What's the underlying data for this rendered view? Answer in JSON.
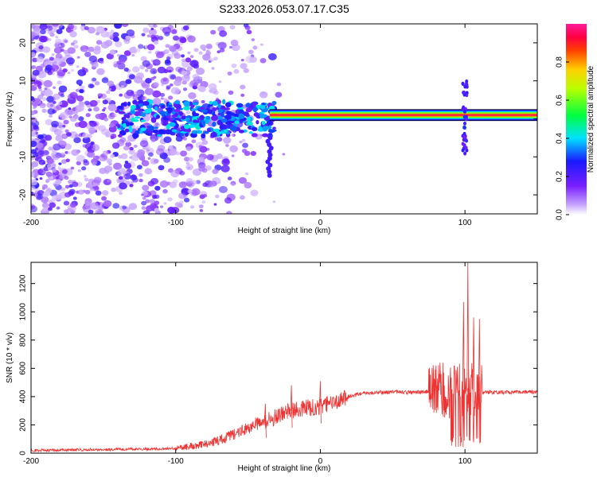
{
  "figure": {
    "title": "S233.2026.053.07.17.C35"
  },
  "chart_data": [
    {
      "type": "heatmap",
      "title": "S233.2026.053.07.17.C35",
      "xlabel": "Height of straight line (km)",
      "ylabel": "Frequency (Hz)",
      "xlim": [
        -200,
        150
      ],
      "ylim": [
        -25,
        25
      ],
      "xticks": [
        -200,
        -100,
        0,
        100
      ],
      "yticks": [
        -20,
        -10,
        0,
        10,
        20
      ],
      "xtick_labels": [
        "-200",
        "-100",
        "0",
        "100"
      ],
      "ytick_labels": [
        "-20",
        "-10",
        "0",
        "10",
        "20"
      ],
      "colorbar": {
        "label": "Normalized spectral amplitude",
        "range": [
          0,
          1
        ],
        "ticks": [
          0,
          0.2,
          0.4,
          0.6,
          0.8
        ],
        "tick_labels": [
          "0.0",
          "0.2",
          "0.4",
          "0.6",
          "0.8"
        ],
        "colormap": "rainbow (purple-blue-cyan-green-yellow-red-magenta)"
      },
      "features": {
        "carrier_line": {
          "x_range": [
            -35,
            150
          ],
          "frequency": 1,
          "amplitude": 0.95
        },
        "noisy_region": {
          "x_range": [
            -200,
            -30
          ],
          "frequency_spread": 25
        },
        "spike_near": {
          "x": 100,
          "frequency_range": [
            -10,
            10
          ]
        }
      }
    },
    {
      "type": "line",
      "title": "",
      "xlabel": "Height of straight line (km)",
      "ylabel": "SNR (10 * v/v)",
      "xlim": [
        -200,
        150
      ],
      "ylim": [
        0,
        1350
      ],
      "xticks": [
        -200,
        -100,
        0,
        100
      ],
      "yticks": [
        0,
        200,
        400,
        600,
        800,
        1000,
        1200
      ],
      "xtick_labels": [
        "-200",
        "-100",
        "0",
        "100"
      ],
      "ytick_labels": [
        "0",
        "200",
        "400",
        "600",
        "800",
        "1000",
        "1200"
      ],
      "color": "#ee3333",
      "profile": [
        [
          -200,
          20
        ],
        [
          -150,
          25
        ],
        [
          -110,
          30
        ],
        [
          -95,
          40
        ],
        [
          -80,
          60
        ],
        [
          -70,
          90
        ],
        [
          -60,
          130
        ],
        [
          -50,
          180
        ],
        [
          -40,
          220
        ],
        [
          -30,
          260
        ],
        [
          -20,
          300
        ],
        [
          -10,
          320
        ],
        [
          0,
          330
        ],
        [
          10,
          360
        ],
        [
          20,
          400
        ],
        [
          30,
          425
        ],
        [
          40,
          430
        ],
        [
          50,
          435
        ],
        [
          60,
          430
        ],
        [
          70,
          432
        ],
        [
          80,
          440
        ],
        [
          90,
          445
        ],
        [
          98,
          440
        ],
        [
          104,
          440
        ],
        [
          110,
          430
        ],
        [
          120,
          430
        ],
        [
          130,
          430
        ],
        [
          140,
          432
        ],
        [
          150,
          430
        ]
      ],
      "peaks": [
        {
          "x": 102,
          "y": 1350
        },
        {
          "x": 99,
          "y": 1070
        },
        {
          "x": 106,
          "y": 960
        },
        {
          "x": 110,
          "y": 950
        },
        {
          "x": 80,
          "y": 620
        },
        {
          "x": 90,
          "y": 580
        },
        {
          "x": -20,
          "y": 480
        },
        {
          "x": -38,
          "y": 350
        },
        {
          "x": 0,
          "y": 510
        }
      ]
    }
  ]
}
